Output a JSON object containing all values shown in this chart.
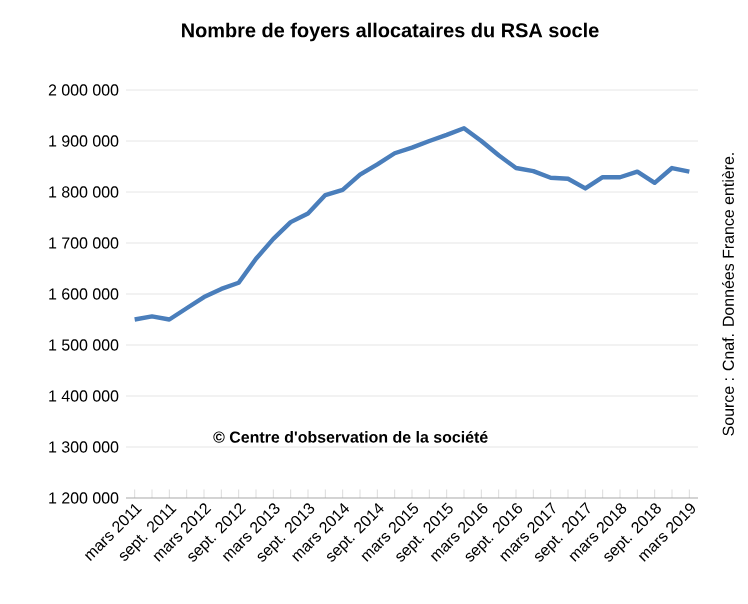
{
  "chart_data": {
    "type": "line",
    "title": "Nombre de foyers allocataires du RSA socle",
    "categories": [
      "mars 2011",
      null,
      "sept. 2011",
      null,
      "mars 2012",
      null,
      "sept. 2012",
      null,
      "mars 2013",
      null,
      "sept. 2013",
      null,
      "mars 2014",
      null,
      "sept. 2014",
      null,
      "mars 2015",
      null,
      "sept. 2015",
      null,
      "mars 2016",
      null,
      "sept. 2016",
      null,
      "mars 2017",
      null,
      "sept. 2017",
      null,
      "mars 2018",
      null,
      "sept. 2018",
      null,
      "mars 2019"
    ],
    "series": [
      {
        "color": "#4a7ebb",
        "values": [
          1550000,
          1556000,
          1550000,
          1572000,
          1594000,
          1610000,
          1622000,
          1669000,
          1708000,
          1741000,
          1758000,
          1794000,
          1804000,
          1834000,
          1854000,
          1876000,
          1887000,
          1900000,
          1912000,
          1925000,
          1900000,
          1872000,
          1847000,
          1841000,
          1828000,
          1826000,
          1807000,
          1829000,
          1829000,
          1840000,
          1818000,
          1847000,
          1840000
        ]
      }
    ],
    "ylim": [
      1200000,
      2000000
    ],
    "yticks": [
      {
        "value": 1200000,
        "label": "1 200 000"
      },
      {
        "value": 1300000,
        "label": "1 300 000"
      },
      {
        "value": 1400000,
        "label": "1 400 000"
      },
      {
        "value": 1500000,
        "label": "1 500 000"
      },
      {
        "value": 1600000,
        "label": "1 600 000"
      },
      {
        "value": 1700000,
        "label": "1 700 000"
      },
      {
        "value": 1800000,
        "label": "1 800 000"
      },
      {
        "value": 1900000,
        "label": "1 900 000"
      },
      {
        "value": 2000000,
        "label": "2 000 000"
      }
    ],
    "grid": "y",
    "marker": "none",
    "line_style": "solid",
    "annotations": [
      "© Centre d'observation de la  société",
      "Source : Cnaf. Données France entière."
    ]
  }
}
